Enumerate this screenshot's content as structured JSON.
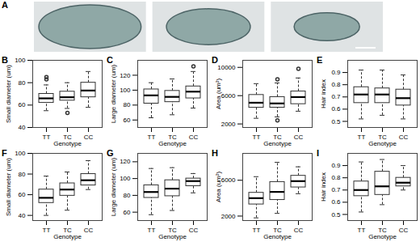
{
  "figure": {
    "image_panel": "A",
    "image_count": 3
  },
  "chart_data": [
    {
      "type": "box",
      "title": "B",
      "xlabel": "Genotype",
      "ylabel": "Small diameter (um)",
      "categories": [
        "TT",
        "TC",
        "CC"
      ],
      "boxes": [
        {
          "min": 55,
          "q1": 62,
          "median": 66,
          "q3": 70,
          "max": 78,
          "outliers": [
            83,
            85
          ]
        },
        {
          "min": 57,
          "q1": 64,
          "median": 67,
          "q3": 72,
          "max": 80,
          "outliers": [
            53
          ]
        },
        {
          "min": 58,
          "q1": 67,
          "median": 73,
          "q3": 80,
          "max": 90,
          "outliers": []
        }
      ],
      "ylim": [
        40,
        100
      ],
      "yticks": [
        40,
        60,
        80,
        100
      ]
    },
    {
      "type": "box",
      "title": "C",
      "xlabel": "Genotype",
      "ylabel": "Large diameter (um)",
      "categories": [
        "TT",
        "TC",
        "CC"
      ],
      "boxes": [
        {
          "min": 63,
          "q1": 82,
          "median": 93,
          "q3": 101,
          "max": 110,
          "outliers": []
        },
        {
          "min": 67,
          "q1": 84,
          "median": 91,
          "q3": 99,
          "max": 115,
          "outliers": []
        },
        {
          "min": 76,
          "q1": 89,
          "median": 98,
          "q3": 105,
          "max": 125,
          "outliers": [
            132
          ]
        }
      ],
      "ylim": [
        50,
        140
      ],
      "yticks": [
        60,
        80,
        100,
        120
      ]
    },
    {
      "type": "box",
      "title": "D",
      "xlabel": "Genotype",
      "ylabel": "Area (um²)",
      "categories": [
        "TT",
        "TC",
        "CC"
      ],
      "boxes": [
        {
          "min": 2800,
          "q1": 4300,
          "median": 5000,
          "q3": 6100,
          "max": 7700,
          "outliers": []
        },
        {
          "min": 3000,
          "q1": 4300,
          "median": 4900,
          "q3": 5800,
          "max": 7800,
          "outliers": [
            8300,
            2500
          ]
        },
        {
          "min": 3800,
          "q1": 4800,
          "median": 5800,
          "q3": 6600,
          "max": 8500,
          "outliers": [
            9800
          ]
        }
      ],
      "ylim": [
        1500,
        11000
      ],
      "yticks": [
        2000,
        6000,
        10000
      ]
    },
    {
      "type": "box",
      "title": "E",
      "xlabel": "Genotype",
      "ylabel": "Hair index",
      "categories": [
        "TT",
        "TC",
        "CC"
      ],
      "boxes": [
        {
          "min": 0.52,
          "q1": 0.65,
          "median": 0.72,
          "q3": 0.78,
          "max": 0.92,
          "outliers": []
        },
        {
          "min": 0.55,
          "q1": 0.65,
          "median": 0.72,
          "q3": 0.77,
          "max": 0.92,
          "outliers": []
        },
        {
          "min": 0.52,
          "q1": 0.63,
          "median": 0.69,
          "q3": 0.76,
          "max": 0.88,
          "outliers": []
        }
      ],
      "ylim": [
        0.45,
        1.0
      ],
      "yticks": [
        0.5,
        0.6,
        0.7,
        0.8,
        0.9
      ]
    },
    {
      "type": "box",
      "title": "F",
      "xlabel": "Genotype",
      "ylabel": "Small diameter (um)",
      "categories": [
        "TT",
        "TC",
        "CC"
      ],
      "boxes": [
        {
          "min": 40,
          "q1": 52,
          "median": 57,
          "q3": 65,
          "max": 78,
          "outliers": []
        },
        {
          "min": 45,
          "q1": 59,
          "median": 65,
          "q3": 71,
          "max": 82,
          "outliers": []
        },
        {
          "min": 65,
          "q1": 69,
          "median": 74,
          "q3": 80,
          "max": 93,
          "outliers": []
        }
      ],
      "ylim": [
        35,
        100
      ],
      "yticks": [
        40,
        60,
        80,
        100
      ]
    },
    {
      "type": "box",
      "title": "G",
      "xlabel": "Genotype",
      "ylabel": "Large diameter (um)",
      "categories": [
        "TT",
        "TC",
        "CC"
      ],
      "boxes": [
        {
          "min": 57,
          "q1": 77,
          "median": 84,
          "q3": 92,
          "max": 112,
          "outliers": []
        },
        {
          "min": 62,
          "q1": 79,
          "median": 88,
          "q3": 98,
          "max": 113,
          "outliers": []
        },
        {
          "min": 83,
          "q1": 91,
          "median": 97,
          "q3": 100,
          "max": 106,
          "outliers": []
        }
      ],
      "ylim": [
        50,
        130
      ],
      "yticks": [
        60,
        80,
        100,
        120
      ]
    },
    {
      "type": "box",
      "title": "H",
      "xlabel": "Genotype",
      "ylabel": "Area (um²)",
      "categories": [
        "TT",
        "TC",
        "CC"
      ],
      "boxes": [
        {
          "min": 1800,
          "q1": 3300,
          "median": 4000,
          "q3": 4600,
          "max": 6400,
          "outliers": []
        },
        {
          "min": 2300,
          "q1": 3800,
          "median": 4700,
          "q3": 5800,
          "max": 8000,
          "outliers": []
        },
        {
          "min": 4500,
          "q1": 5200,
          "median": 5900,
          "q3": 6500,
          "max": 7500,
          "outliers": []
        }
      ],
      "ylim": [
        1500,
        9000
      ],
      "yticks": [
        2000,
        6000
      ]
    },
    {
      "type": "box",
      "title": "I",
      "xlabel": "Genotype",
      "ylabel": "Hair index",
      "categories": [
        "TT",
        "TC",
        "CC"
      ],
      "boxes": [
        {
          "min": 0.52,
          "q1": 0.65,
          "median": 0.7,
          "q3": 0.77,
          "max": 0.93,
          "outliers": []
        },
        {
          "min": 0.58,
          "q1": 0.66,
          "median": 0.73,
          "q3": 0.85,
          "max": 0.95,
          "outliers": []
        },
        {
          "min": 0.7,
          "q1": 0.73,
          "median": 0.76,
          "q3": 0.8,
          "max": 0.9,
          "outliers": []
        }
      ],
      "ylim": [
        0.45,
        1.0
      ],
      "yticks": [
        0.5,
        0.6,
        0.7,
        0.8,
        0.9
      ]
    }
  ]
}
